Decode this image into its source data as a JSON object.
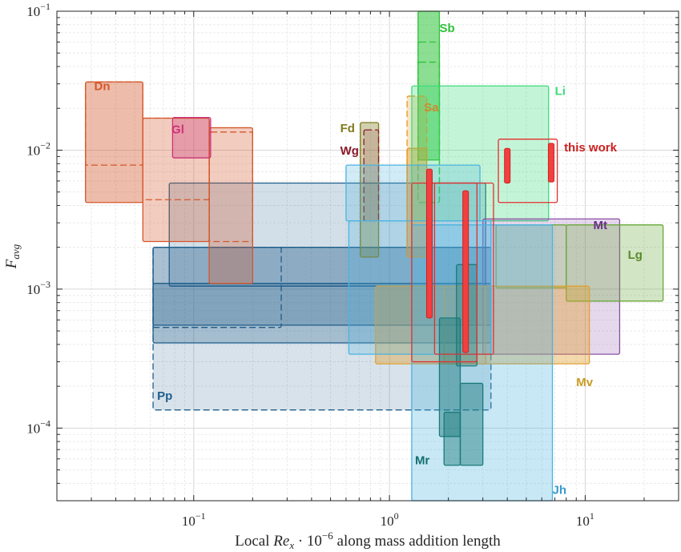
{
  "chart_data": {
    "type": "range-box",
    "xlabel": {
      "prefix": "Local ",
      "var": "Re",
      "sub": "x",
      "mid": " · 10",
      "sup": "−6",
      "suffix": " along mass addition length"
    },
    "ylabel": {
      "var": "F",
      "sub": "avg"
    },
    "xscale": "log",
    "yscale": "log",
    "xlim": [
      0.02,
      30
    ],
    "ylim": [
      3e-05,
      0.1
    ],
    "xticks": [
      {
        "value": 0.1,
        "base": "10",
        "exp": "-1"
      },
      {
        "value": 1,
        "base": "10",
        "exp": "0"
      },
      {
        "value": 10,
        "base": "10",
        "exp": "1"
      }
    ],
    "yticks": [
      {
        "value": 0.0001,
        "base": "10",
        "exp": "-4"
      },
      {
        "value": 0.001,
        "base": "10",
        "exp": "-3"
      },
      {
        "value": 0.01,
        "base": "10",
        "exp": "-2"
      },
      {
        "value": 0.1,
        "base": "10",
        "exp": "-1"
      }
    ],
    "grid": "major and minor",
    "series": [
      {
        "name": "Pp",
        "color": "#1f5d8a",
        "label_color": "#1f5d8a",
        "label_at": [
          0.065,
          0.00016
        ],
        "boxes": [
          {
            "x": [
              0.062,
              3.3
            ],
            "y": [
              0.000135,
              0.002
            ],
            "dashed": true,
            "alpha": 0.18
          },
          {
            "x": [
              0.062,
              0.28
            ],
            "y": [
              0.00053,
              0.002
            ],
            "dashed": true,
            "alpha": 0.0
          },
          {
            "x": [
              0.062,
              3.3
            ],
            "y": [
              0.00055,
              0.002
            ],
            "dashed": false,
            "alpha": 0.25
          },
          {
            "x": [
              0.062,
              3.3
            ],
            "y": [
              0.00041,
              0.0011
            ],
            "dashed": false,
            "alpha": 0.28
          },
          {
            "x": [
              0.075,
              3.1
            ],
            "y": [
              0.00105,
              0.0058
            ],
            "dashed": false,
            "alpha": 0.2
          }
        ]
      },
      {
        "name": "Dn",
        "color": "#d4572a",
        "label_color": "#d4572a",
        "label_at": [
          0.031,
          0.027
        ],
        "boxes": [
          {
            "x": [
              0.028,
              0.055
            ],
            "y": [
              0.0042,
              0.031
            ],
            "dashed": false,
            "alpha": 0.4
          },
          {
            "x": [
              0.028,
              0.055
            ],
            "y": [
              0.0078,
              0.031
            ],
            "dashed": true,
            "alpha": 0.0
          },
          {
            "x": [
              0.055,
              0.12
            ],
            "y": [
              0.0022,
              0.017
            ],
            "dashed": false,
            "alpha": 0.3
          },
          {
            "x": [
              0.055,
              0.12
            ],
            "y": [
              0.0044,
              0.017
            ],
            "dashed": true,
            "alpha": 0.0
          },
          {
            "x": [
              0.12,
              0.2
            ],
            "y": [
              0.0011,
              0.0145
            ],
            "dashed": false,
            "alpha": 0.3
          },
          {
            "x": [
              0.12,
              0.2
            ],
            "y": [
              0.0022,
              0.0135
            ],
            "dashed": true,
            "alpha": 0.0
          }
        ]
      },
      {
        "name": "Gl",
        "color": "#cc3377",
        "label_color": "#cc3377",
        "label_at": [
          0.077,
          0.0132
        ],
        "boxes": [
          {
            "x": [
              0.078,
              0.122
            ],
            "y": [
              0.0088,
              0.0172
            ],
            "dashed": false,
            "alpha": 0.3
          }
        ]
      },
      {
        "name": "Fd",
        "color": "#7f7a1a",
        "label_color": "#7f7a1a",
        "label_at": [
          0.56,
          0.0135
        ],
        "boxes": [
          {
            "x": [
              0.71,
              0.88
            ],
            "y": [
              0.0017,
              0.0158
            ],
            "dashed": false,
            "alpha": 0.35
          }
        ]
      },
      {
        "name": "Wg",
        "color": "#8b1a2a",
        "label_color": "#8b1a2a",
        "label_at": [
          0.56,
          0.0093
        ],
        "boxes": [
          {
            "x": [
              0.74,
              0.88
            ],
            "y": [
              0.0031,
              0.014
            ],
            "dashed": true,
            "alpha": 0.15
          }
        ]
      },
      {
        "name": "Sb",
        "color": "#2ec23a",
        "label_color": "#2ec23a",
        "label_at": [
          1.8,
          0.071
        ],
        "boxes": [
          {
            "x": [
              1.4,
              1.8
            ],
            "y": [
              0.0085,
              0.1
            ],
            "dashed": false,
            "alpha": 0.55
          },
          {
            "x": [
              1.4,
              1.8
            ],
            "y": [
              0.0042,
              0.06
            ],
            "dashed": true,
            "alpha": 0.0
          },
          {
            "x": [
              1.4,
              1.8
            ],
            "y": [
              0.0042,
              0.043
            ],
            "dashed": true,
            "alpha": 0.0
          }
        ]
      },
      {
        "name": "Sa",
        "color": "#e89520",
        "label_color": "#d0882a",
        "label_at": [
          1.5,
          0.019
        ],
        "boxes": [
          {
            "x": [
              1.23,
              1.55
            ],
            "y": [
              0.0017,
              0.0245
            ],
            "dashed": true,
            "alpha": 0.25
          },
          {
            "x": [
              1.23,
              1.55
            ],
            "y": [
              0.0017,
              0.0103
            ],
            "dashed": false,
            "alpha": 0.35
          }
        ]
      },
      {
        "name": "Li",
        "color": "#3cdb7a",
        "label_color": "#3cdb7a",
        "label_at": [
          7.0,
          0.025
        ],
        "boxes": [
          {
            "x": [
              1.3,
              6.5
            ],
            "y": [
              0.0031,
              0.029
            ],
            "dashed": false,
            "alpha": 0.3
          }
        ]
      },
      {
        "name": "Mt",
        "color": "#8a4fa8",
        "label_color": "#6a2f88",
        "label_at": [
          11.0,
          0.0027
        ],
        "boxes": [
          {
            "x": [
              3.0,
              15.0
            ],
            "y": [
              0.00034,
              0.0032
            ],
            "dashed": false,
            "alpha": 0.22
          }
        ]
      },
      {
        "name": "Lg",
        "color": "#6aa83a",
        "label_color": "#5a8a2a",
        "label_at": [
          16.5,
          0.00165
        ],
        "boxes": [
          {
            "x": [
              3.5,
              8.0
            ],
            "y": [
              0.00102,
              0.0029
            ],
            "dashed": false,
            "alpha": 0.25
          },
          {
            "x": [
              8.0,
              25.0
            ],
            "y": [
              0.00082,
              0.0029
            ],
            "dashed": false,
            "alpha": 0.3
          }
        ]
      },
      {
        "name": "Mv",
        "color": "#e0a030",
        "label_color": "#c89a20",
        "label_at": [
          9.0,
          0.0002
        ],
        "boxes": [
          {
            "x": [
              0.85,
              10.5
            ],
            "y": [
              0.00029,
              0.00105
            ],
            "dashed": false,
            "alpha": 0.4
          },
          {
            "x": [
              1.9,
              3.1
            ],
            "y": [
              0.00029,
              0.00105
            ],
            "dashed": false,
            "alpha": 0.15
          }
        ]
      },
      {
        "name": "Jh",
        "color": "#4ab3e0",
        "label_color": "#3a9ad0",
        "label_at": [
          6.8,
          3.35e-05
        ],
        "boxes": [
          {
            "x": [
              0.6,
              2.9
            ],
            "y": [
              0.0031,
              0.0078
            ],
            "dashed": false,
            "alpha": 0.25
          },
          {
            "x": [
              0.62,
              3.3
            ],
            "y": [
              0.00034,
              0.0031
            ],
            "dashed": false,
            "alpha": 0.25
          },
          {
            "x": [
              1.3,
              6.8
            ],
            "y": [
              2.9e-05,
              0.0029
            ],
            "dashed": false,
            "alpha": 0.3
          }
        ]
      },
      {
        "name": "Mr",
        "color": "#1a7a7a",
        "label_color": "#146e6e",
        "label_at": [
          1.35,
          5.5e-05
        ],
        "boxes": [
          {
            "x": [
              1.8,
              2.3
            ],
            "y": [
              8.7e-05,
              0.00062
            ],
            "dashed": false,
            "alpha": 0.45
          },
          {
            "x": [
              1.9,
              2.3
            ],
            "y": [
              5.4e-05,
              0.00013
            ],
            "dashed": false,
            "alpha": 0.45
          },
          {
            "x": [
              2.3,
              3.0
            ],
            "y": [
              5.4e-05,
              0.00021
            ],
            "dashed": false,
            "alpha": 0.45
          },
          {
            "x": [
              2.2,
              2.8
            ],
            "y": [
              0.00028,
              0.0015
            ],
            "dashed": false,
            "alpha": 0.3
          }
        ]
      },
      {
        "name": "this work",
        "color": "#e03030",
        "label_color": "#cc1f1f",
        "label_at": [
          7.8,
          0.0098
        ],
        "boxes": [
          {
            "x": [
              1.3,
              2.8
            ],
            "y": [
              0.0003,
              0.0058
            ],
            "dashed": false,
            "alpha": 0.0
          },
          {
            "x": [
              1.7,
              3.4
            ],
            "y": [
              0.00034,
              0.0058
            ],
            "dashed": false,
            "alpha": 0.0
          },
          {
            "x": [
              3.6,
              7.2
            ],
            "y": [
              0.0042,
              0.012
            ],
            "dashed": false,
            "alpha": 0.0
          }
        ],
        "bars": [
          {
            "x": 1.6,
            "y": [
              0.00062,
              0.0073
            ]
          },
          {
            "x": 2.45,
            "y": [
              0.00035,
              0.0051
            ]
          },
          {
            "x": 4.0,
            "y": [
              0.0058,
              0.0103
            ]
          },
          {
            "x": 6.7,
            "y": [
              0.0059,
              0.0112
            ]
          }
        ]
      }
    ]
  }
}
